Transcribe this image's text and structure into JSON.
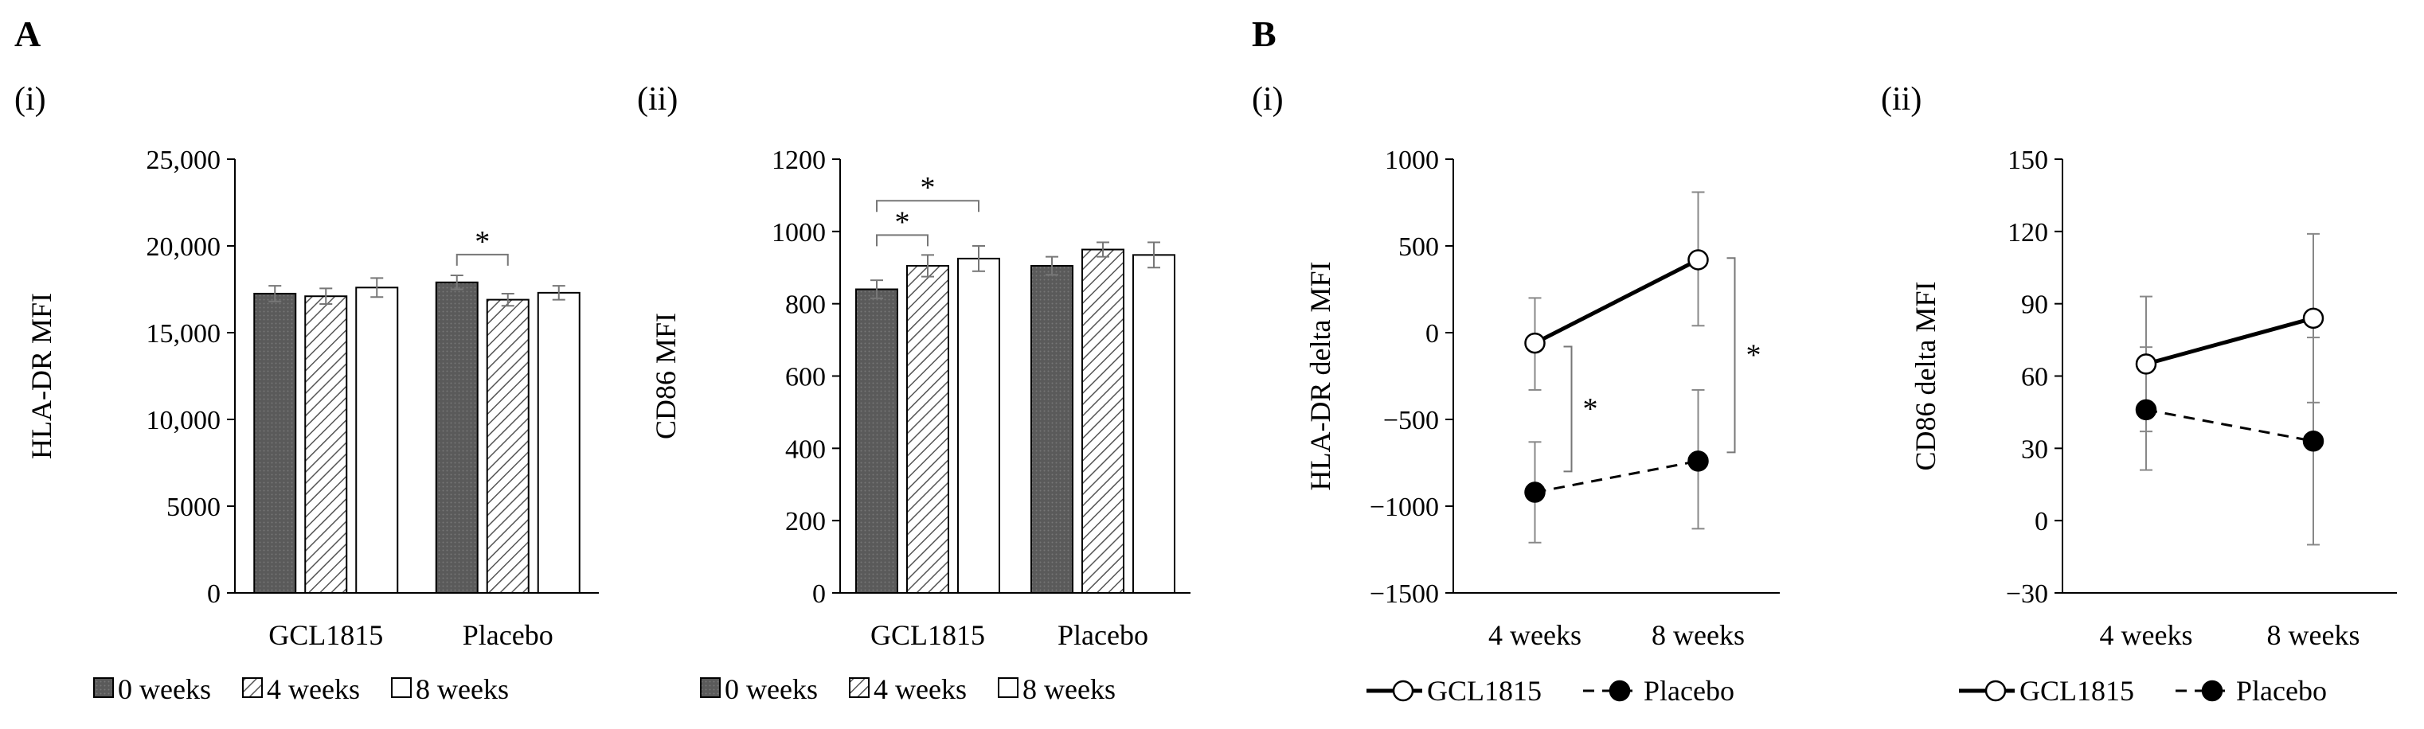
{
  "figure": {
    "panel_a": "A",
    "panel_b": "B",
    "sub_i": "(i)",
    "sub_ii": "(ii)",
    "colors": {
      "dark": "#555555",
      "hatch": "#555555",
      "white": "#ffffff",
      "axis": "#000000",
      "err": "#888888"
    }
  },
  "chart_data": [
    {
      "id": "A-i",
      "type": "bar",
      "panel": "A",
      "sub": "(i)",
      "ylabel": "HLA-DR MFI",
      "ylim": [
        0,
        25000
      ],
      "yticks": [
        0,
        5000,
        10000,
        15000,
        20000,
        25000
      ],
      "ytick_labels": [
        "0",
        "5000",
        "10,000",
        "15,000",
        "20,000",
        "25,000"
      ],
      "categories": [
        "GCL1815",
        "Placebo"
      ],
      "series": [
        {
          "name": "0 weeks",
          "style": "dark",
          "values": [
            17250,
            17900
          ],
          "err": [
            450,
            400
          ]
        },
        {
          "name": "4 weeks",
          "style": "hatch",
          "values": [
            17100,
            16900
          ],
          "err": [
            450,
            350
          ]
        },
        {
          "name": "8 weeks",
          "style": "white",
          "values": [
            17600,
            17300
          ],
          "err": [
            550,
            400
          ]
        }
      ],
      "sig": [
        {
          "cat": 1,
          "from": 0,
          "to": 1,
          "y": 19500,
          "label": "*"
        }
      ]
    },
    {
      "id": "A-ii",
      "type": "bar",
      "panel": "",
      "sub": "(ii)",
      "ylabel": "CD86 MFI",
      "ylim": [
        0,
        1200
      ],
      "yticks": [
        0,
        200,
        400,
        600,
        800,
        1000,
        1200
      ],
      "ytick_labels": [
        "0",
        "200",
        "400",
        "600",
        "800",
        "1000",
        "1200"
      ],
      "categories": [
        "GCL1815",
        "Placebo"
      ],
      "series": [
        {
          "name": "0 weeks",
          "style": "dark",
          "values": [
            840,
            905
          ],
          "err": [
            25,
            25
          ]
        },
        {
          "name": "4 weeks",
          "style": "hatch",
          "values": [
            905,
            950
          ],
          "err": [
            30,
            20
          ]
        },
        {
          "name": "8 weeks",
          "style": "white",
          "values": [
            925,
            935
          ],
          "err": [
            35,
            35
          ]
        }
      ],
      "sig": [
        {
          "cat": 0,
          "from": 0,
          "to": 1,
          "y": 990,
          "label": "*"
        },
        {
          "cat": 0,
          "from": 0,
          "to": 2,
          "y": 1085,
          "label": "*"
        }
      ]
    },
    {
      "id": "B-i",
      "type": "line",
      "panel": "B",
      "sub": "(i)",
      "ylabel": "HLA-DR delta MFI",
      "ylim": [
        -1500,
        1000
      ],
      "yticks": [
        -1500,
        -1000,
        -500,
        0,
        500,
        1000
      ],
      "ytick_labels": [
        "−1500",
        "−1000",
        "−500",
        "0",
        "500",
        "1000"
      ],
      "x": [
        "4 weeks",
        "8 weeks"
      ],
      "series": [
        {
          "name": "GCL1815",
          "marker": "open",
          "dash": false,
          "values": [
            -60,
            420
          ],
          "lo": [
            -330,
            40
          ],
          "hi": [
            200,
            810
          ]
        },
        {
          "name": "Placebo",
          "marker": "filled",
          "dash": true,
          "values": [
            -920,
            -740
          ],
          "lo": [
            -1210,
            -1130
          ],
          "hi": [
            -630,
            -330
          ]
        }
      ],
      "sig": [
        {
          "xi": 0,
          "side": "right",
          "y1": -80,
          "y2": -800,
          "label": "*"
        },
        {
          "xi": 1,
          "side": "right",
          "y1": 430,
          "y2": -690,
          "label": "*"
        }
      ]
    },
    {
      "id": "B-ii",
      "type": "line",
      "panel": "",
      "sub": "(ii)",
      "ylabel": "CD86 delta MFI",
      "ylim": [
        -30,
        150
      ],
      "yticks": [
        -30,
        0,
        30,
        60,
        90,
        120,
        150
      ],
      "ytick_labels": [
        "−30",
        "0",
        "30",
        "60",
        "90",
        "120",
        "150"
      ],
      "x": [
        "4 weeks",
        "8 weeks"
      ],
      "series": [
        {
          "name": "GCL1815",
          "marker": "open",
          "dash": false,
          "values": [
            65,
            84
          ],
          "lo": [
            37,
            49
          ],
          "hi": [
            93,
            119
          ]
        },
        {
          "name": "Placebo",
          "marker": "filled",
          "dash": true,
          "values": [
            46,
            33
          ],
          "lo": [
            21,
            -10
          ],
          "hi": [
            72,
            76
          ]
        }
      ],
      "sig": []
    }
  ]
}
